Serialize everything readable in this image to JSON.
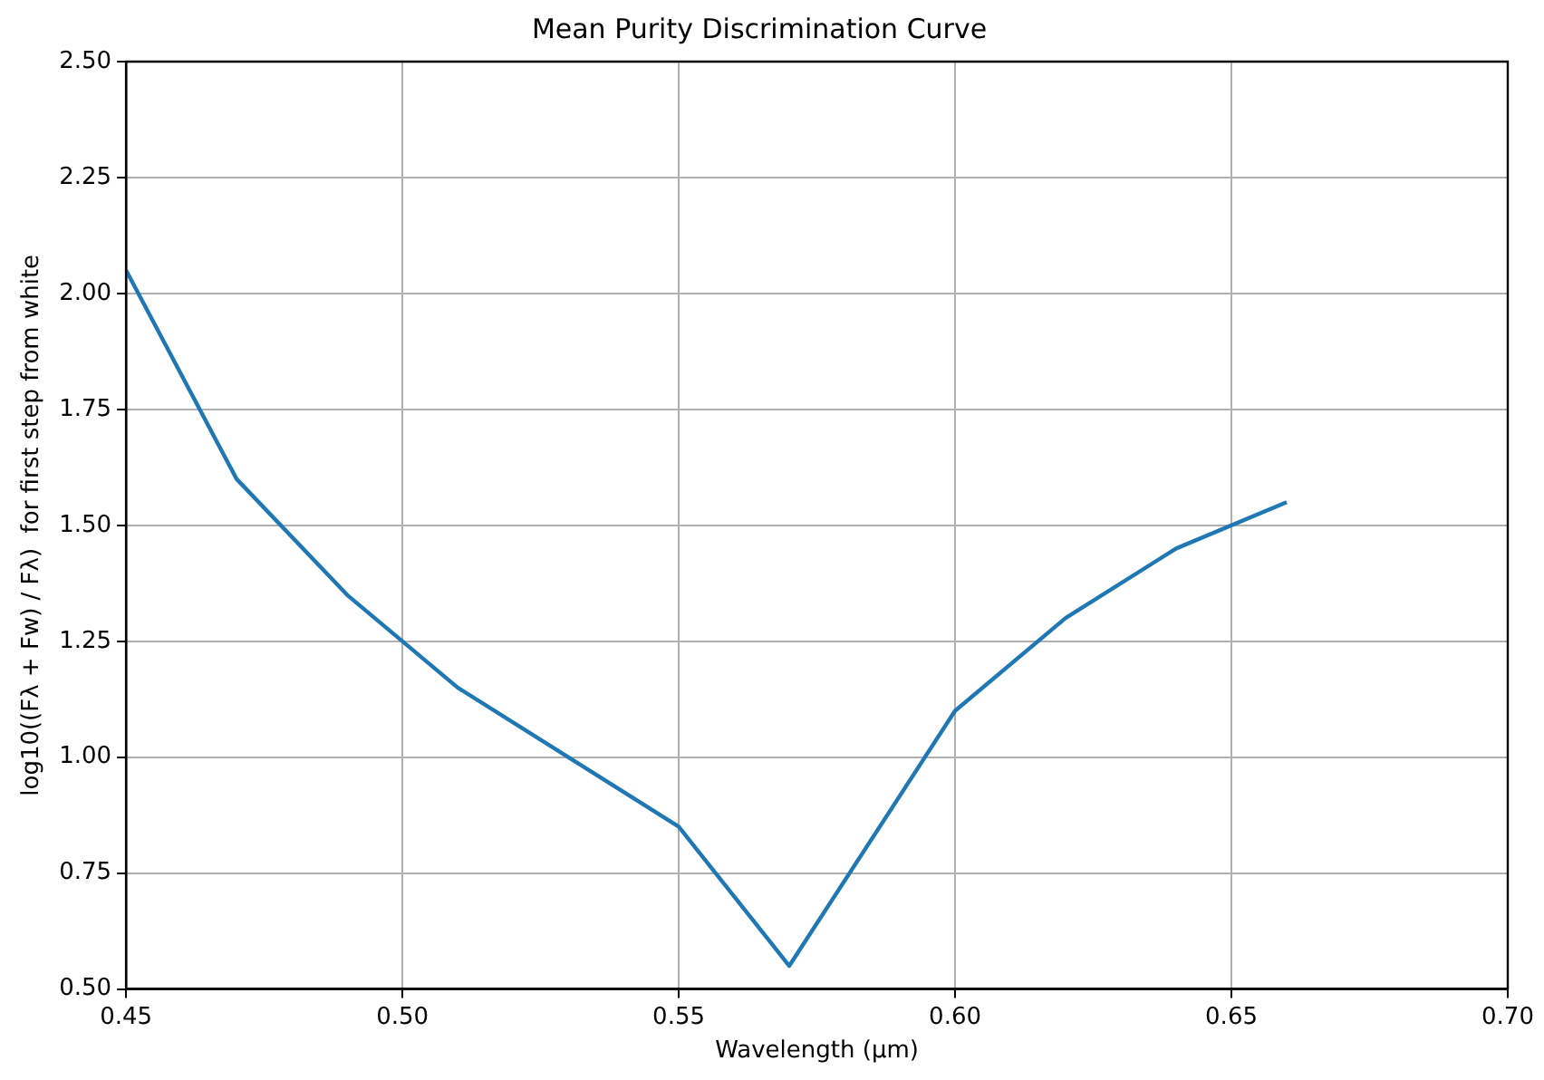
{
  "chart_data": {
    "type": "line",
    "title": "Mean Purity Discrimination Curve",
    "xlabel": "Wavelength (µm)",
    "ylabel": "log10((Fλ + Fw) / Fλ)  for first step from white",
    "x": [
      0.45,
      0.47,
      0.49,
      0.51,
      0.53,
      0.55,
      0.57,
      0.6,
      0.62,
      0.64,
      0.66
    ],
    "series": [
      {
        "color": "#1f77b4",
        "values": [
          2.05,
          1.6,
          1.35,
          1.15,
          1.0,
          0.85,
          0.55,
          1.1,
          1.3,
          1.45,
          1.55
        ]
      }
    ],
    "xlim": [
      0.45,
      0.7
    ],
    "xticks": [
      {
        "value": 0.45,
        "label": "0.45"
      },
      {
        "value": 0.5,
        "label": "0.50"
      },
      {
        "value": 0.55,
        "label": "0.55"
      },
      {
        "value": 0.6,
        "label": "0.60"
      },
      {
        "value": 0.65,
        "label": "0.65"
      },
      {
        "value": 0.7,
        "label": "0.70"
      }
    ],
    "ylim": [
      0.5,
      2.5
    ],
    "yticks": [
      {
        "value": 0.5,
        "label": "0.50"
      },
      {
        "value": 0.75,
        "label": "0.75"
      },
      {
        "value": 1.0,
        "label": "1.00"
      },
      {
        "value": 1.25,
        "label": "1.25"
      },
      {
        "value": 1.5,
        "label": "1.50"
      },
      {
        "value": 1.75,
        "label": "1.75"
      },
      {
        "value": 2.0,
        "label": "2.00"
      },
      {
        "value": 2.25,
        "label": "2.25"
      },
      {
        "value": 2.5,
        "label": "2.50"
      }
    ],
    "grid": true,
    "legend": false,
    "marker": "none",
    "line_style": "solid"
  }
}
